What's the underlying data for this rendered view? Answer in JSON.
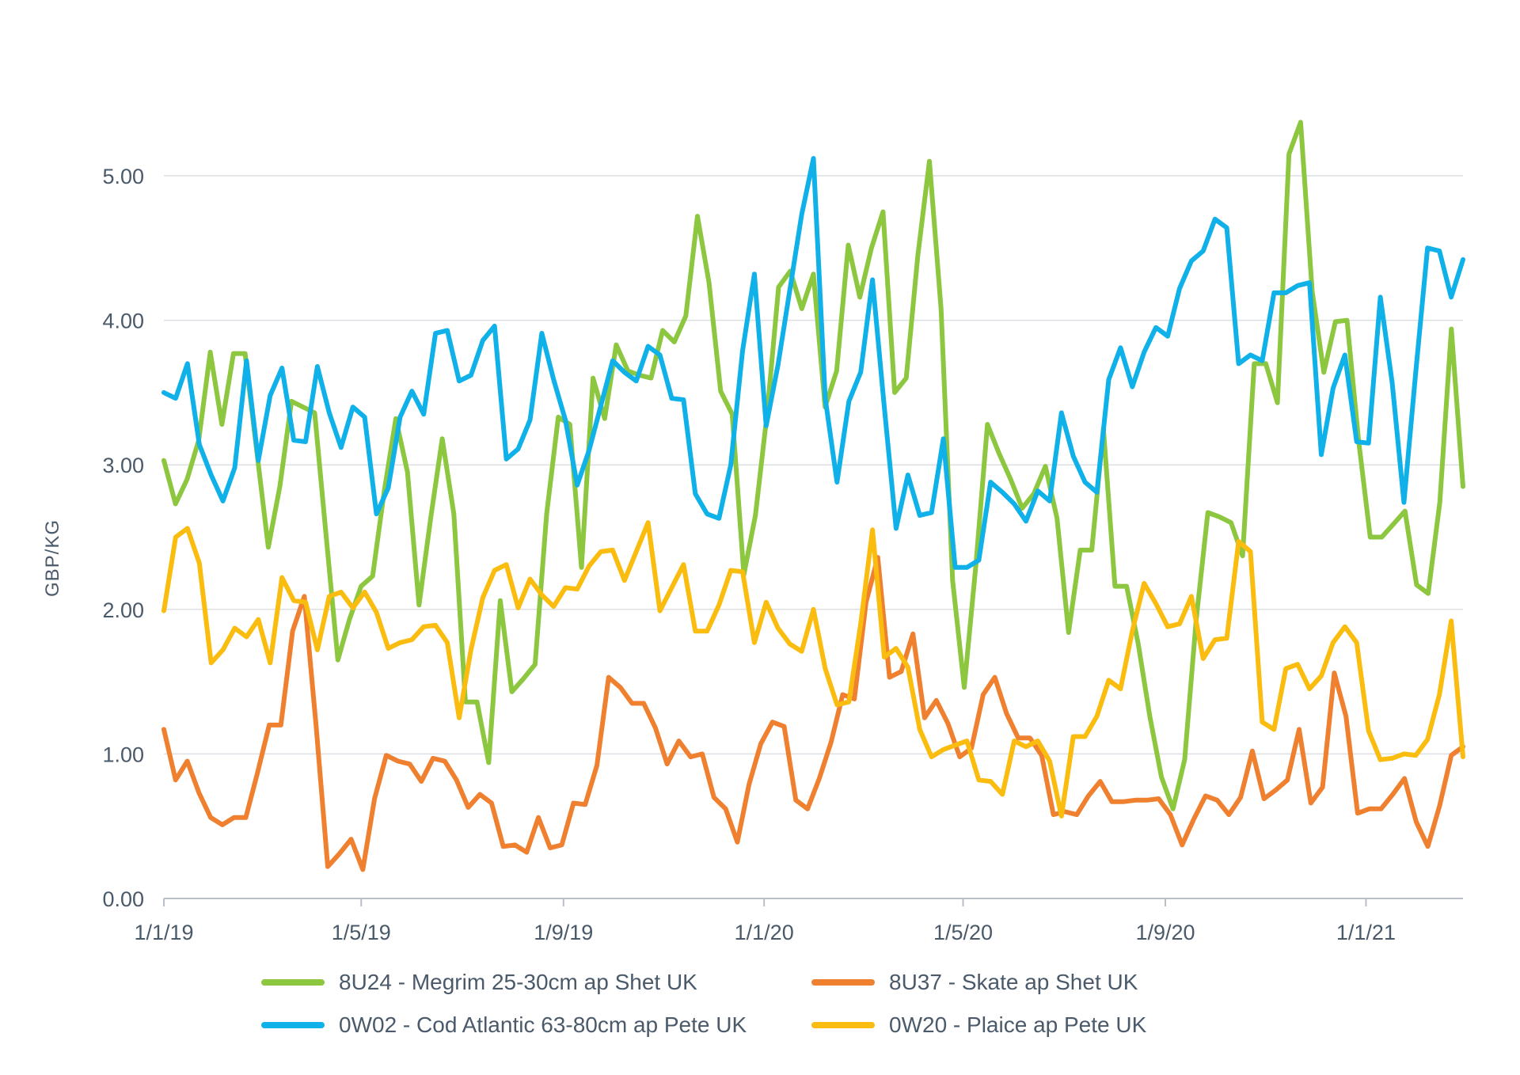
{
  "chart_data": {
    "type": "line",
    "ylabel": "GBP/KG",
    "ylim": [
      0,
      5.5
    ],
    "yticks": [
      "0.00",
      "1.00",
      "2.00",
      "3.00",
      "4.00",
      "5.00"
    ],
    "xticks": [
      "1/1/19",
      "1/5/19",
      "1/9/19",
      "1/1/20",
      "1/5/20",
      "1/9/20",
      "1/1/21"
    ],
    "x_start": "2019-01-01",
    "x_end": "2021-03-01",
    "grid": true,
    "legend_position": "bottom",
    "series": [
      {
        "name": "8U24 - Megrim 25-30cm ap Shet UK",
        "color": "#8dc63f",
        "values": [
          3.03,
          2.73,
          2.9,
          3.17,
          3.78,
          3.28,
          3.77,
          3.77,
          3.1,
          2.43,
          2.85,
          3.44,
          3.4,
          3.36,
          2.5,
          1.65,
          1.93,
          2.16,
          2.23,
          2.82,
          3.32,
          2.95,
          2.03,
          2.63,
          3.18,
          2.66,
          1.36,
          1.36,
          0.94,
          2.06,
          1.43,
          1.52,
          1.62,
          2.66,
          3.33,
          3.28,
          2.29,
          3.6,
          3.32,
          3.83,
          3.65,
          3.62,
          3.6,
          3.93,
          3.85,
          4.03,
          4.72,
          4.26,
          3.51,
          3.35,
          2.24,
          2.65,
          3.35,
          4.23,
          4.34,
          4.08,
          4.32,
          3.4,
          3.65,
          4.52,
          4.16,
          4.5,
          4.75,
          3.5,
          3.6,
          4.45,
          5.1,
          4.08,
          2.2,
          1.46,
          2.3,
          3.28,
          3.08,
          2.9,
          2.7,
          2.8,
          2.99,
          2.63,
          1.84,
          2.41,
          2.41,
          3.25,
          2.16,
          2.16,
          1.76,
          1.26,
          0.84,
          0.62,
          0.96,
          1.93,
          2.67,
          2.64,
          2.6,
          2.37,
          3.7,
          3.7,
          3.43,
          5.15,
          5.37,
          4.2,
          3.64,
          3.99,
          4.0,
          3.17,
          2.5,
          2.5,
          2.59,
          2.68,
          2.17,
          2.11,
          2.74,
          3.94,
          2.85
        ]
      },
      {
        "name": "8U37 - Skate ap Shet UK",
        "color": "#ef8030",
        "values": [
          1.17,
          0.82,
          0.95,
          0.73,
          0.56,
          0.51,
          0.56,
          0.56,
          0.87,
          1.2,
          1.2,
          1.85,
          2.09,
          1.2,
          0.22,
          0.31,
          0.41,
          0.2,
          0.69,
          0.99,
          0.95,
          0.93,
          0.81,
          0.97,
          0.95,
          0.82,
          0.63,
          0.72,
          0.66,
          0.36,
          0.37,
          0.32,
          0.56,
          0.35,
          0.37,
          0.66,
          0.65,
          0.92,
          1.53,
          1.46,
          1.35,
          1.35,
          1.18,
          0.93,
          1.09,
          0.98,
          1.0,
          0.7,
          0.62,
          0.39,
          0.79,
          1.07,
          1.22,
          1.19,
          0.68,
          0.62,
          0.83,
          1.08,
          1.41,
          1.38,
          2.05,
          2.36,
          1.53,
          1.57,
          1.83,
          1.25,
          1.37,
          1.21,
          0.98,
          1.04,
          1.41,
          1.53,
          1.28,
          1.11,
          1.11,
          0.99,
          0.58,
          0.6,
          0.58,
          0.71,
          0.81,
          0.67,
          0.67,
          0.68,
          0.68,
          0.69,
          0.58,
          0.37,
          0.55,
          0.71,
          0.68,
          0.58,
          0.7,
          1.02,
          0.69,
          0.75,
          0.82,
          1.17,
          0.66,
          0.77,
          1.56,
          1.26,
          0.59,
          0.62,
          0.62,
          0.72,
          0.83,
          0.53,
          0.36,
          0.64,
          0.99,
          1.05
        ]
      },
      {
        "name": "0W02 - Cod Atlantic 63-80cm ap Pete UK",
        "color": "#0fb1e8",
        "values": [
          3.5,
          3.46,
          3.7,
          3.14,
          2.93,
          2.75,
          2.98,
          3.72,
          3.03,
          3.48,
          3.67,
          3.17,
          3.16,
          3.68,
          3.36,
          3.12,
          3.4,
          3.33,
          2.66,
          2.84,
          3.33,
          3.51,
          3.35,
          3.91,
          3.93,
          3.58,
          3.62,
          3.86,
          3.96,
          3.04,
          3.11,
          3.31,
          3.91,
          3.59,
          3.31,
          2.86,
          3.1,
          3.41,
          3.72,
          3.64,
          3.58,
          3.82,
          3.76,
          3.46,
          3.45,
          2.8,
          2.66,
          2.63,
          3.0,
          3.79,
          4.32,
          3.27,
          3.69,
          4.21,
          4.73,
          5.12,
          3.46,
          2.88,
          3.44,
          3.64,
          4.28,
          3.4,
          2.56,
          2.93,
          2.65,
          2.67,
          3.18,
          2.29,
          2.29,
          2.34,
          2.88,
          2.81,
          2.73,
          2.61,
          2.82,
          2.75,
          3.36,
          3.06,
          2.88,
          2.81,
          3.59,
          3.81,
          3.54,
          3.78,
          3.95,
          3.89,
          4.22,
          4.41,
          4.48,
          4.7,
          4.64,
          3.7,
          3.76,
          3.72,
          4.19,
          4.19,
          4.24,
          4.26,
          3.07,
          3.53,
          3.76,
          3.16,
          3.15,
          4.16,
          3.57,
          2.74,
          3.64,
          4.5,
          4.48,
          4.16,
          4.42
        ]
      },
      {
        "name": "0W20 - Plaice ap Pete UK",
        "color": "#fbbc10",
        "values": [
          1.99,
          2.5,
          2.56,
          2.32,
          1.63,
          1.72,
          1.87,
          1.81,
          1.93,
          1.63,
          2.22,
          2.06,
          2.05,
          1.72,
          2.09,
          2.12,
          2.01,
          2.12,
          1.98,
          1.73,
          1.77,
          1.79,
          1.88,
          1.89,
          1.77,
          1.25,
          1.72,
          2.08,
          2.27,
          2.31,
          2.01,
          2.21,
          2.1,
          2.02,
          2.15,
          2.14,
          2.3,
          2.4,
          2.41,
          2.2,
          2.4,
          2.6,
          1.99,
          2.15,
          2.31,
          1.85,
          1.85,
          2.03,
          2.27,
          2.26,
          1.77,
          2.05,
          1.87,
          1.76,
          1.71,
          2.0,
          1.59,
          1.34,
          1.36,
          1.9,
          2.55,
          1.67,
          1.73,
          1.6,
          1.17,
          0.98,
          1.03,
          1.06,
          1.09,
          0.82,
          0.81,
          0.72,
          1.09,
          1.05,
          1.09,
          0.95,
          0.57,
          1.12,
          1.12,
          1.26,
          1.51,
          1.45,
          1.85,
          2.18,
          2.04,
          1.88,
          1.9,
          2.09,
          1.66,
          1.79,
          1.8,
          2.47,
          2.4,
          1.22,
          1.17,
          1.59,
          1.62,
          1.45,
          1.54,
          1.77,
          1.88,
          1.77,
          1.16,
          0.96,
          0.97,
          1.0,
          0.99,
          1.1,
          1.41,
          1.92,
          0.98
        ]
      }
    ]
  }
}
